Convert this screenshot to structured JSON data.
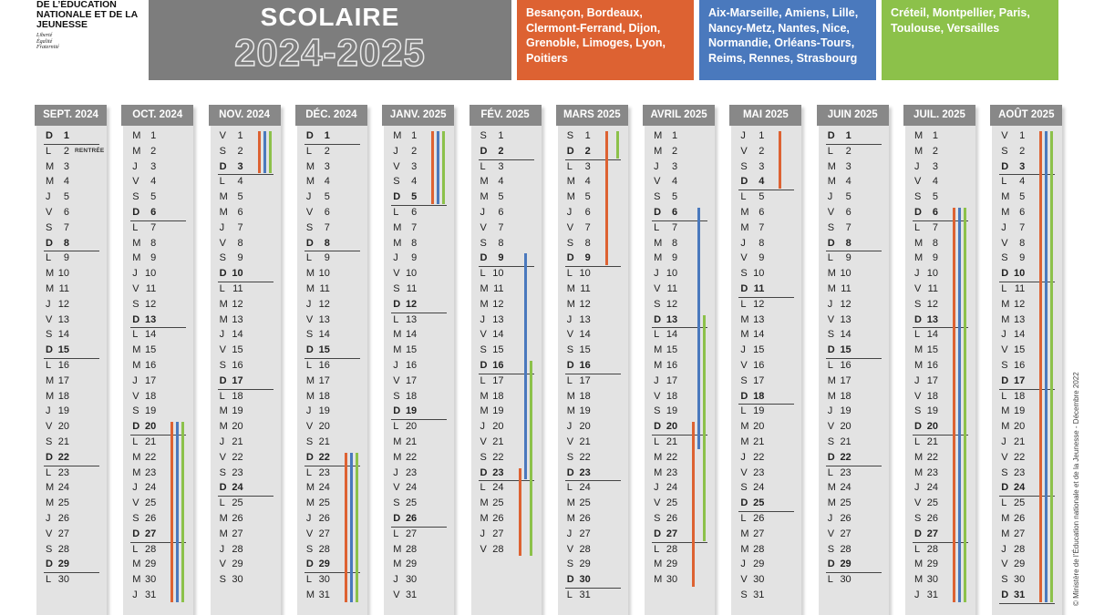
{
  "ministry": {
    "name": "DE L’ÉDUCATION NATIONALE ET DE LA JEUNESSE",
    "motto": [
      "Liberté",
      "Égalité",
      "Fraternité"
    ]
  },
  "title": {
    "line1": "SCOLAIRE",
    "line2": "2024-2025"
  },
  "zones": [
    {
      "id": "A",
      "color": "#dd6232",
      "text": "Besançon, Bordeaux, Clermont-Ferrand, Dijon, Grenoble, Limoges, Lyon, Poitiers"
    },
    {
      "id": "B",
      "color": "#4a79bd",
      "text": "Aix-Marseille, Amiens, Lille, Nancy-Metz, Nantes, Nice, Normandie, Orléans-Tours, Reims, Rennes, Strasbourg"
    },
    {
      "id": "C",
      "color": "#8cc14a",
      "text": "Créteil, Montpellier, Paris, Toulouse, Versailles"
    }
  ],
  "copyright": "© Ministère de l’Éducation nationale et de la Jeunesse - Décembre 2022",
  "months": [
    {
      "label": "SEPT. 2024",
      "days": 30,
      "first_weekday": 6,
      "notes": {
        "2": "RENTRÉE"
      },
      "vacations": []
    },
    {
      "label": "OCT. 2024",
      "days": 31,
      "first_weekday": 1,
      "notes": {},
      "vacations": [
        {
          "zone": "A",
          "from": 20,
          "to": 31
        },
        {
          "zone": "B",
          "from": 20,
          "to": 31
        },
        {
          "zone": "C",
          "from": 20,
          "to": 31
        }
      ]
    },
    {
      "label": "NOV. 2024",
      "days": 30,
      "first_weekday": 4,
      "notes": {},
      "vacations": [
        {
          "zone": "A",
          "from": 1,
          "to": 3
        },
        {
          "zone": "B",
          "from": 1,
          "to": 3
        },
        {
          "zone": "C",
          "from": 1,
          "to": 3
        }
      ]
    },
    {
      "label": "DÉC. 2024",
      "days": 31,
      "first_weekday": 6,
      "notes": {},
      "vacations": [
        {
          "zone": "A",
          "from": 22,
          "to": 31
        },
        {
          "zone": "B",
          "from": 22,
          "to": 31
        },
        {
          "zone": "C",
          "from": 22,
          "to": 31
        }
      ]
    },
    {
      "label": "JANV. 2025",
      "days": 31,
      "first_weekday": 2,
      "notes": {},
      "vacations": [
        {
          "zone": "A",
          "from": 1,
          "to": 5
        },
        {
          "zone": "B",
          "from": 1,
          "to": 5
        },
        {
          "zone": "C",
          "from": 1,
          "to": 5
        }
      ]
    },
    {
      "label": "FÉV. 2025",
      "days": 28,
      "first_weekday": 5,
      "notes": {},
      "vacations": [
        {
          "zone": "B",
          "from": 9,
          "to": 23
        },
        {
          "zone": "C",
          "from": 16,
          "to": 28
        },
        {
          "zone": "A",
          "from": 23,
          "to": 28
        }
      ]
    },
    {
      "label": "MARS 2025",
      "days": 31,
      "first_weekday": 5,
      "notes": {},
      "vacations": [
        {
          "zone": "A",
          "from": 1,
          "to": 9
        },
        {
          "zone": "C",
          "from": 1,
          "to": 2
        }
      ]
    },
    {
      "label": "AVRIL 2025",
      "days": 30,
      "first_weekday": 1,
      "notes": {},
      "vacations": [
        {
          "zone": "B",
          "from": 6,
          "to": 21
        },
        {
          "zone": "C",
          "from": 13,
          "to": 27
        },
        {
          "zone": "A",
          "from": 20,
          "to": 30
        }
      ]
    },
    {
      "label": "MAI 2025",
      "days": 31,
      "first_weekday": 3,
      "notes": {},
      "vacations": [
        {
          "zone": "A",
          "from": 1,
          "to": 4
        }
      ]
    },
    {
      "label": "JUIN 2025",
      "days": 30,
      "first_weekday": 6,
      "notes": {},
      "vacations": []
    },
    {
      "label": "JUIL. 2025",
      "days": 31,
      "first_weekday": 1,
      "notes": {},
      "vacations": [
        {
          "zone": "A",
          "from": 6,
          "to": 31
        },
        {
          "zone": "B",
          "from": 6,
          "to": 31
        },
        {
          "zone": "C",
          "from": 6,
          "to": 31
        }
      ]
    },
    {
      "label": "AOÛT 2025",
      "days": 31,
      "first_weekday": 4,
      "notes": {},
      "vacations": [
        {
          "zone": "A",
          "from": 1,
          "to": 31
        },
        {
          "zone": "B",
          "from": 1,
          "to": 31
        },
        {
          "zone": "C",
          "from": 1,
          "to": 31
        }
      ]
    }
  ],
  "weekday_letters": [
    "L",
    "M",
    "M",
    "J",
    "V",
    "S",
    "D"
  ]
}
